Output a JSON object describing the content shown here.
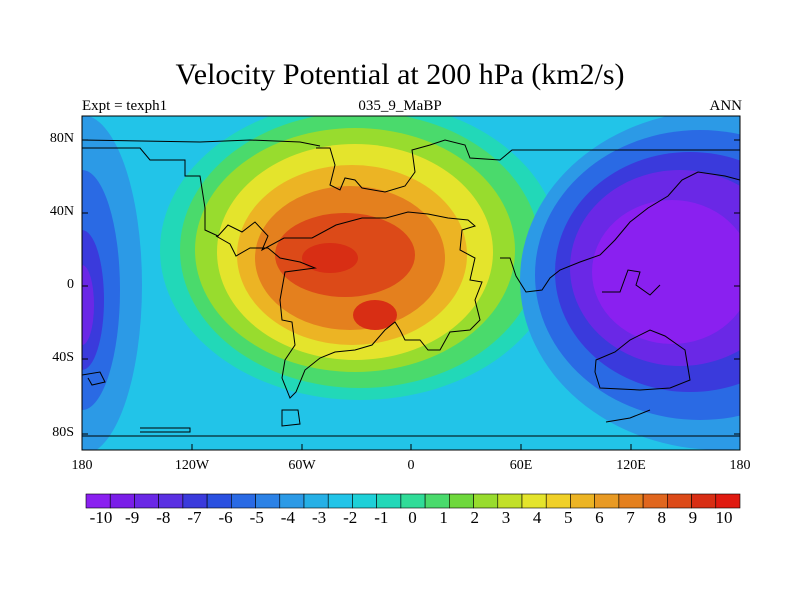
{
  "title": "Velocity Potential at 200 hPa (km2/s)",
  "subtitle_left": "Expt = texph1",
  "subtitle_center": "035_9_MaBP",
  "subtitle_right": "ANN",
  "y_ticks": [
    "80N",
    "40N",
    "0",
    "40S",
    "80S"
  ],
  "x_ticks": [
    "180",
    "120W",
    "60W",
    "0",
    "60E",
    "120E",
    "180"
  ],
  "colorbar": {
    "labels": [
      "-10",
      "-9",
      "-8",
      "-7",
      "-6",
      "-5",
      "-4",
      "-3",
      "-2",
      "-1",
      "0",
      "1",
      "2",
      "3",
      "4",
      "5",
      "6",
      "7",
      "8",
      "9",
      "10"
    ],
    "colors": [
      "#8a20f0",
      "#7a1ee8",
      "#6a28e6",
      "#5a30e2",
      "#3a3adc",
      "#2a50e0",
      "#2a6ae4",
      "#2c82e6",
      "#2c9ae6",
      "#26b0e6",
      "#22c4e8",
      "#1ed0d8",
      "#22d8b8",
      "#30dc98",
      "#4ada6c",
      "#6ed83c",
      "#98dc2e",
      "#c2e028",
      "#e4e42c",
      "#f0d028",
      "#ecb424",
      "#e89a24",
      "#e4801e",
      "#e0661e",
      "#dc4a18",
      "#d82e14",
      "#e01a10"
    ]
  }
}
